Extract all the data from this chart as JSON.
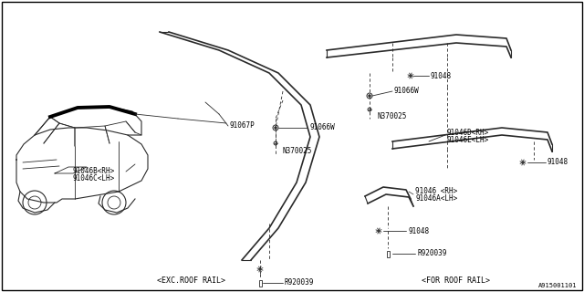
{
  "bg_color": "#ffffff",
  "border_color": "#000000",
  "lc": "#2a2a2a",
  "pc": "#000000",
  "footer_left": "<EXC.ROOF RAIL>",
  "footer_right": "<FOR ROOF RAIL>",
  "diagram_id": "A915001101",
  "parts": {
    "91048": "91048",
    "91066W": "91066W",
    "91046D_RH": "91046D<RH>",
    "91046E_LH": "91046E<LH>",
    "N370025": "N370025",
    "91046B_RH": "91046B<RH>",
    "91046C_LH": "91046C<LH>",
    "91067P": "91067P",
    "91046_RH": "91046 <RH>",
    "91046A_LH": "91046A<LH>",
    "R920039": "R920039"
  }
}
